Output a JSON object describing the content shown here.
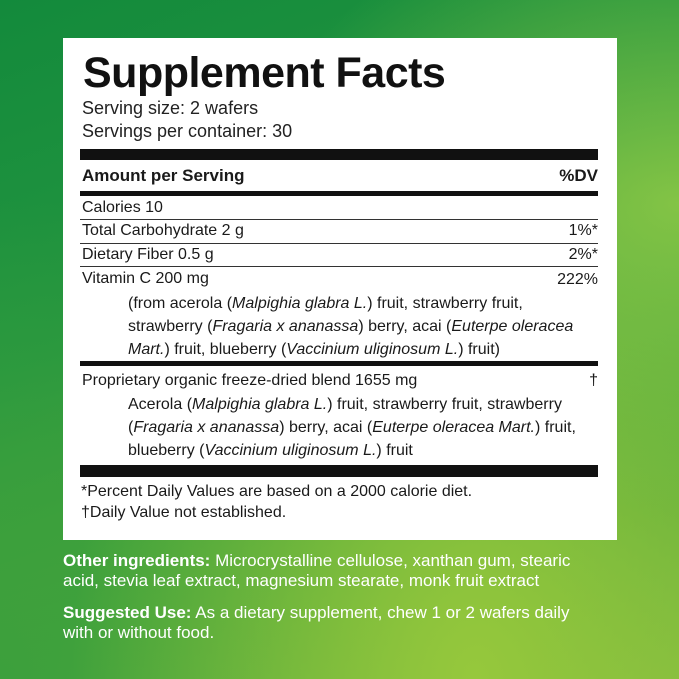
{
  "title": "Supplement Facts",
  "serving_size": "Serving size: 2 wafers",
  "servings_per_container": "Servings per container: 30",
  "header": {
    "amount": "Amount  per Serving",
    "dv": "%DV"
  },
  "rows": [
    {
      "label": "Calories 10",
      "dv": ""
    },
    {
      "label": "Total Carbohydrate 2 g",
      "dv": "1%*"
    },
    {
      "label": "Dietary Fiber 0.5 g",
      "dv": "2%*"
    },
    {
      "label": "Vitamin C 200 mg",
      "dv": "222%"
    }
  ],
  "vitamin_c_sources": [
    [
      {
        "t": "(from acerola (",
        "i": false
      },
      {
        "t": "Malpighia glabra L.",
        "i": true
      },
      {
        "t": ") fruit,  strawberry fruit,",
        "i": false
      }
    ],
    [
      {
        "t": "strawberry (",
        "i": false
      },
      {
        "t": "Fragaria x ananassa",
        "i": true
      },
      {
        "t": ") berry, acai (",
        "i": false
      },
      {
        "t": "Euterpe oleracea",
        "i": true
      }
    ],
    [
      {
        "t": "Mart.",
        "i": true
      },
      {
        "t": ") fruit, blueberry (",
        "i": false
      },
      {
        "t": "Vaccinium uliginosum L.",
        "i": true
      },
      {
        "t": ") fruit)",
        "i": false
      }
    ]
  ],
  "blend": {
    "label": "Proprietary organic freeze-dried blend 1655 mg",
    "dv": "†"
  },
  "blend_sources": [
    [
      {
        "t": "Acerola (",
        "i": false
      },
      {
        "t": "Malpighia glabra L.",
        "i": true
      },
      {
        "t": ") fruit, strawberry fruit, strawberry",
        "i": false
      }
    ],
    [
      {
        "t": "(",
        "i": false
      },
      {
        "t": "Fragaria x ananassa",
        "i": true
      },
      {
        "t": ") berry, acai (",
        "i": false
      },
      {
        "t": "Euterpe oleracea Mart.",
        "i": true
      },
      {
        "t": ") fruit,",
        "i": false
      }
    ],
    [
      {
        "t": "blueberry (",
        "i": false
      },
      {
        "t": "Vaccinium uliginosum L.",
        "i": true
      },
      {
        "t": ") fruit",
        "i": false
      }
    ]
  ],
  "footnotes": [
    "*Percent Daily Values are based on a 2000 calorie diet.",
    "†Daily Value not established."
  ],
  "other_ingredients": {
    "label": "Other ingredients:",
    "lines": [
      " Microcrystalline cellulose, xanthan gum, stearic",
      "acid, stevia leaf extract, magnesium stearate, monk fruit extract"
    ]
  },
  "suggested_use": {
    "label": "Suggested Use:",
    "lines": [
      " As a dietary supplement, chew 1 or 2 wafers daily",
      "with or without food."
    ]
  }
}
